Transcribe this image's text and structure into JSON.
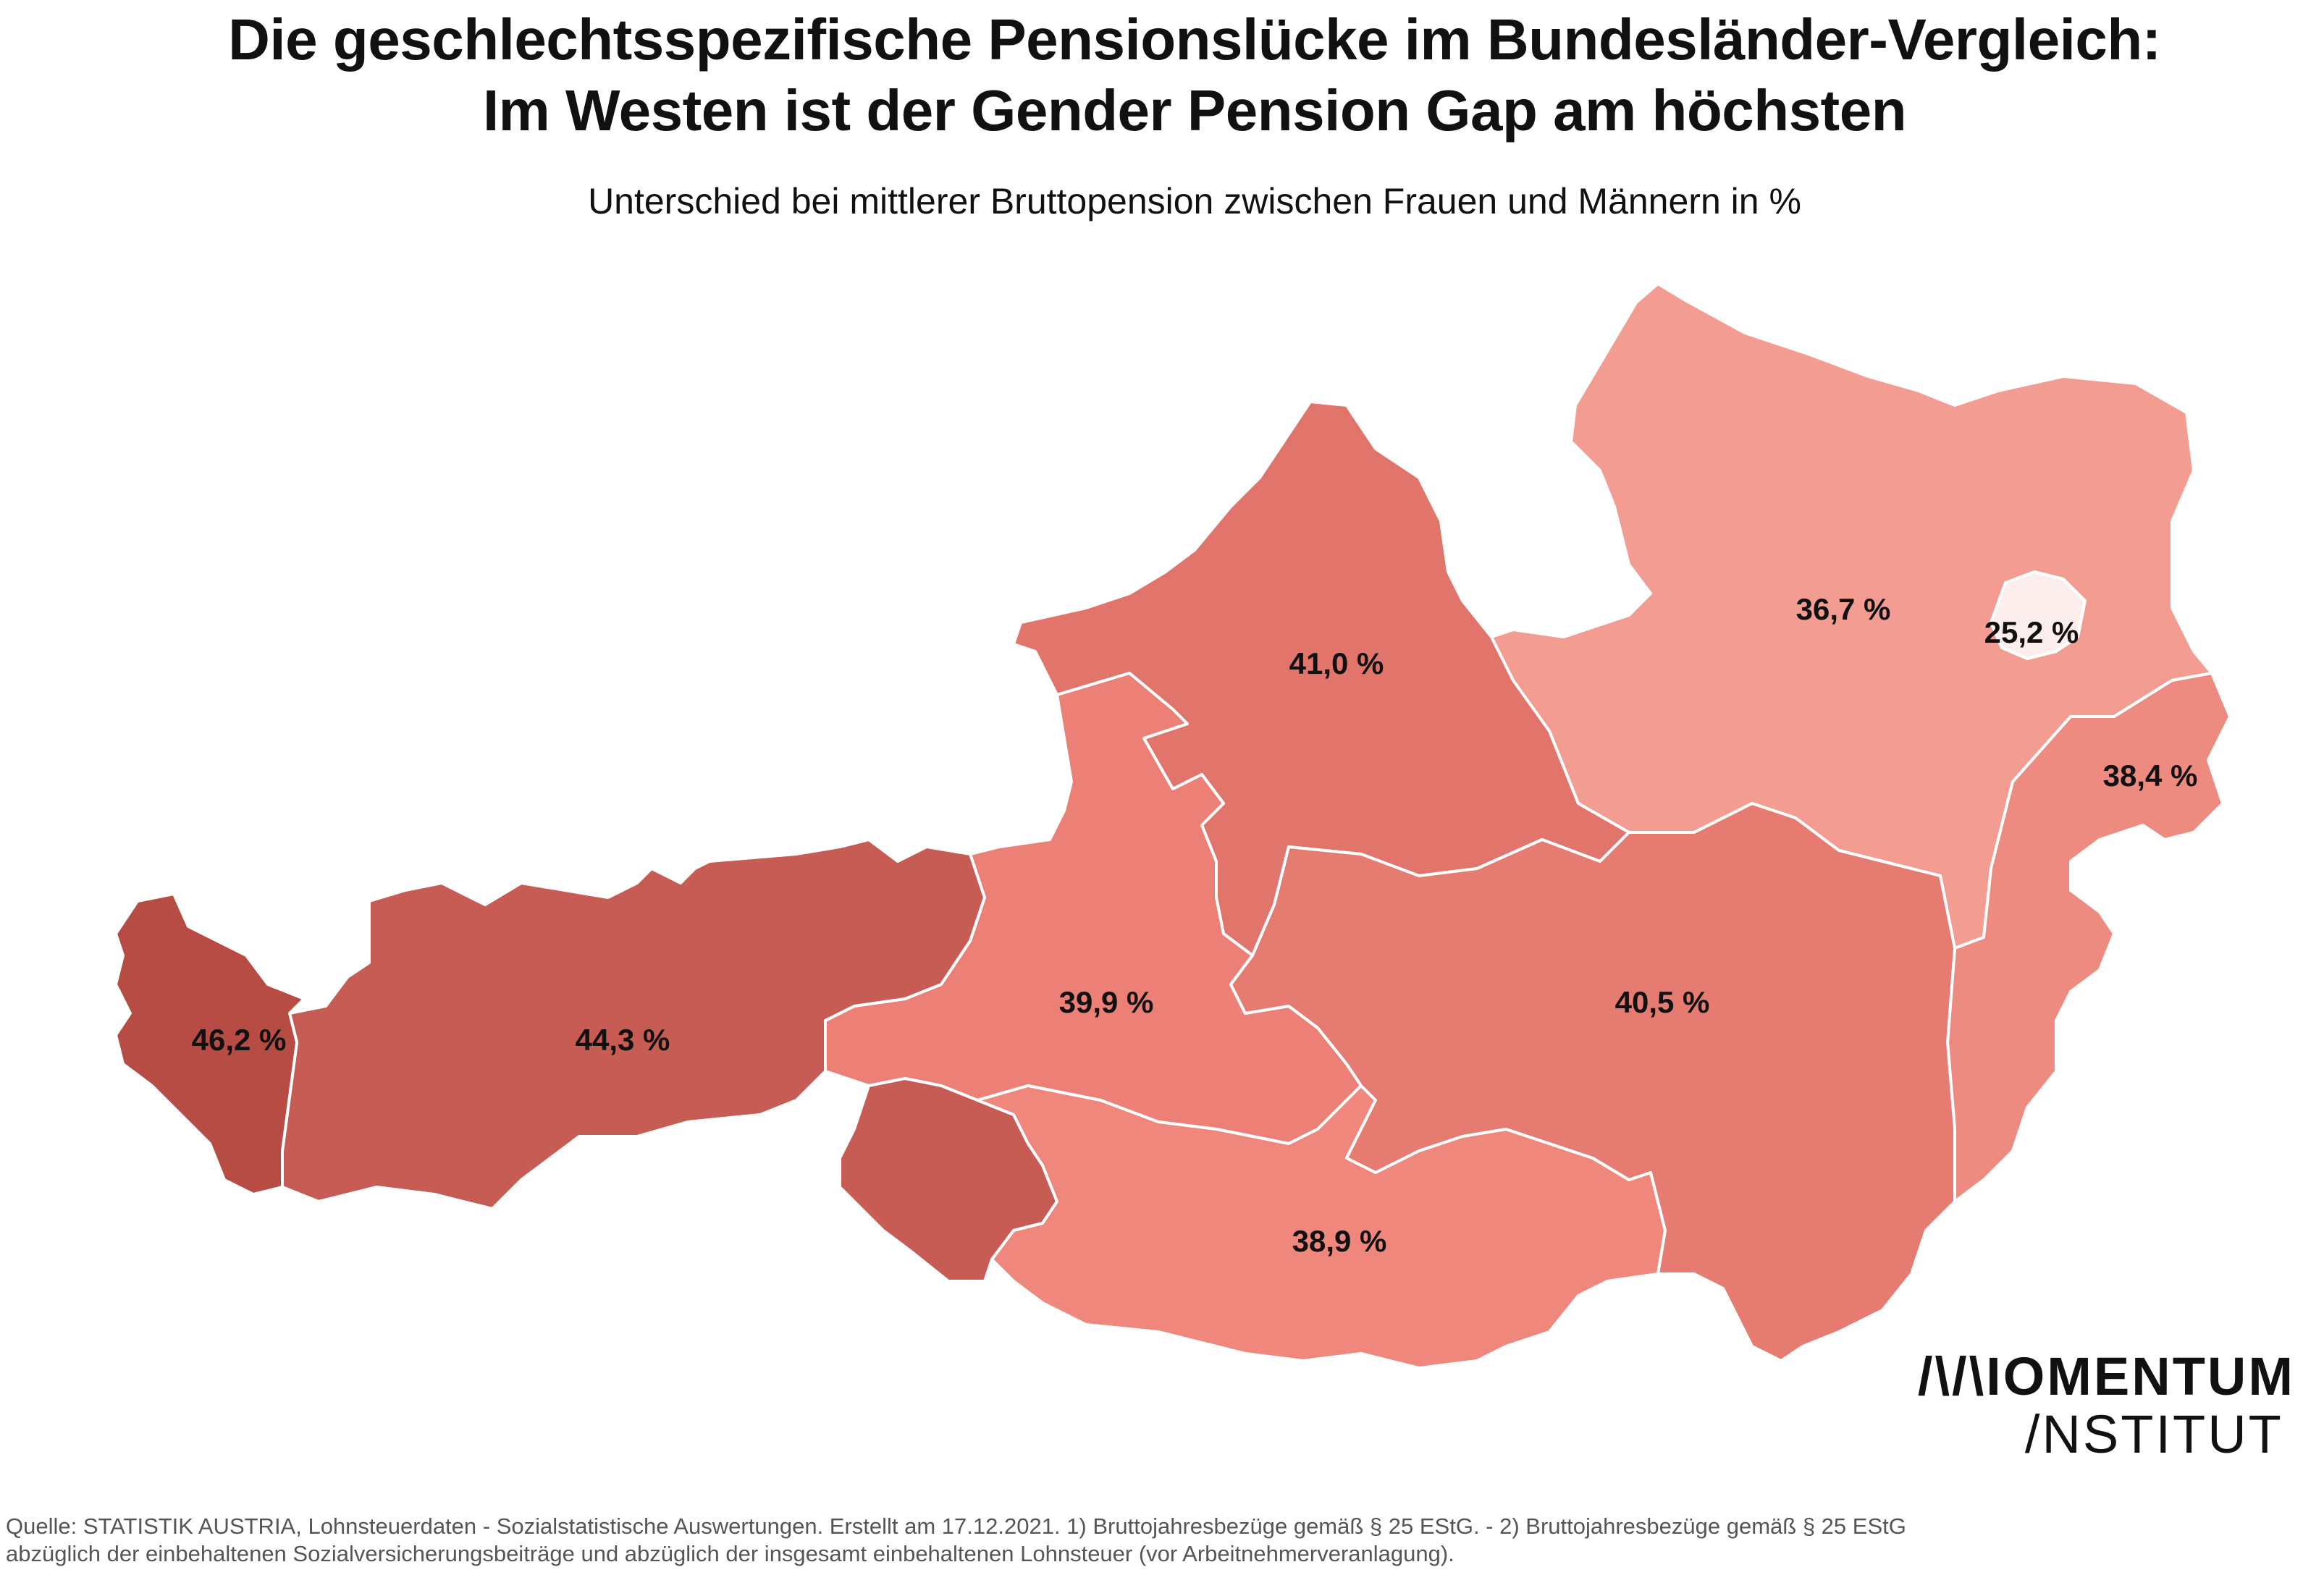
{
  "header": {
    "title_line1": "Die geschlechtsspezifische Pensionslücke im Bundesländer-Vergleich:",
    "title_line2": "Im Westen ist der Gender Pension Gap am höchsten",
    "subtitle": "Unterschied bei mittlerer Bruttopension zwischen Frauen und Männern in %"
  },
  "regions": [
    {
      "id": "vorarlberg",
      "label": "46,2 %",
      "value": 46.2,
      "color": "#b74c45"
    },
    {
      "id": "tirol",
      "label": "44,3 %",
      "value": 44.3,
      "color": "#c75c55"
    },
    {
      "id": "osttirol",
      "label": "",
      "value": 44.3,
      "color": "#c75c55"
    },
    {
      "id": "oberoesterreich",
      "label": "41,0 %",
      "value": 41.0,
      "color": "#e1756c"
    },
    {
      "id": "steiermark",
      "label": "40,5 %",
      "value": 40.5,
      "color": "#e57b71"
    },
    {
      "id": "salzburg",
      "label": "39,9 %",
      "value": 39.9,
      "color": "#ec8076"
    },
    {
      "id": "kaernten",
      "label": "38,9 %",
      "value": 38.9,
      "color": "#ef877d"
    },
    {
      "id": "burgenland",
      "label": "38,4 %",
      "value": 38.4,
      "color": "#ee8b81"
    },
    {
      "id": "niederoesterreich",
      "label": "36,7 %",
      "value": 36.7,
      "color": "#f29c92"
    },
    {
      "id": "wien",
      "label": "25,2 %",
      "value": 25.2,
      "color": "#fbeeec"
    }
  ],
  "logo": {
    "line1": "/\\/\\IOMENTUM",
    "line2": "/NSTITUT"
  },
  "source": {
    "line1": "Quelle: STATISTIK AUSTRIA, Lohnsteuerdaten - Sozialstatistische Auswertungen. Erstellt am 17.12.2021. 1) Bruttojahresbezüge gemäß § 25 EStG. - 2) Bruttojahresbezüge gemäß § 25 EStG",
    "line2": "abzüglich der einbehaltenen Sozialversicherungsbeiträge und abzüglich der insgesamt einbehaltenen Lohnsteuer (vor Arbeitnehmerveranlagung)."
  }
}
